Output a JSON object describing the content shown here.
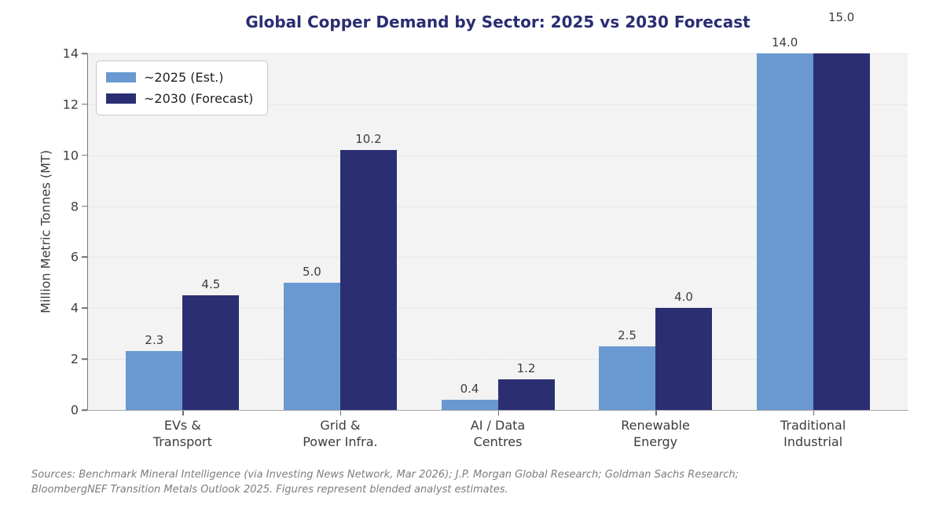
{
  "chart_data": {
    "type": "bar",
    "title": "Global Copper Demand by Sector: 2025 vs 2030 Forecast",
    "ylabel": "Million Metric Tonnes (MT)",
    "xlabel": "",
    "ylim": [
      0,
      14
    ],
    "yticks": [
      0,
      2,
      4,
      6,
      8,
      10,
      12,
      14
    ],
    "grid": "horizontal-dotted",
    "legend_position": "upper-left",
    "categories": [
      "EVs &\nTransport",
      "Grid &\nPower Infra.",
      "AI / Data\nCentres",
      "Renewable\nEnergy",
      "Traditional\nIndustrial"
    ],
    "series": [
      {
        "name": "~2025 (Est.)",
        "color": "#6999d0",
        "values": [
          2.3,
          5.0,
          0.4,
          2.5,
          14.0
        ],
        "labels": [
          "2.3",
          "5.0",
          "0.4",
          "2.5",
          "14.0"
        ]
      },
      {
        "name": "~2030 (Forecast)",
        "color": "#2b2f72",
        "values": [
          4.5,
          10.2,
          1.2,
          4.0,
          15.0
        ],
        "labels": [
          "4.5",
          "10.2",
          "1.2",
          "4.0",
          "15.0"
        ]
      }
    ]
  },
  "colors": {
    "title": "#2a2d72",
    "plot_background": "#f3f3f4",
    "gridline": "#d9d9d9",
    "text": "#3c3c3c",
    "source_text": "#7d7d7d"
  },
  "footnote": {
    "lines": [
      "Sources: Benchmark Mineral Intelligence (via Investing News Network, Mar 2026); J.P. Morgan Global Research; Goldman Sachs Research;",
      "BloombergNEF Transition Metals Outlook 2025. Figures represent blended analyst estimates."
    ]
  }
}
